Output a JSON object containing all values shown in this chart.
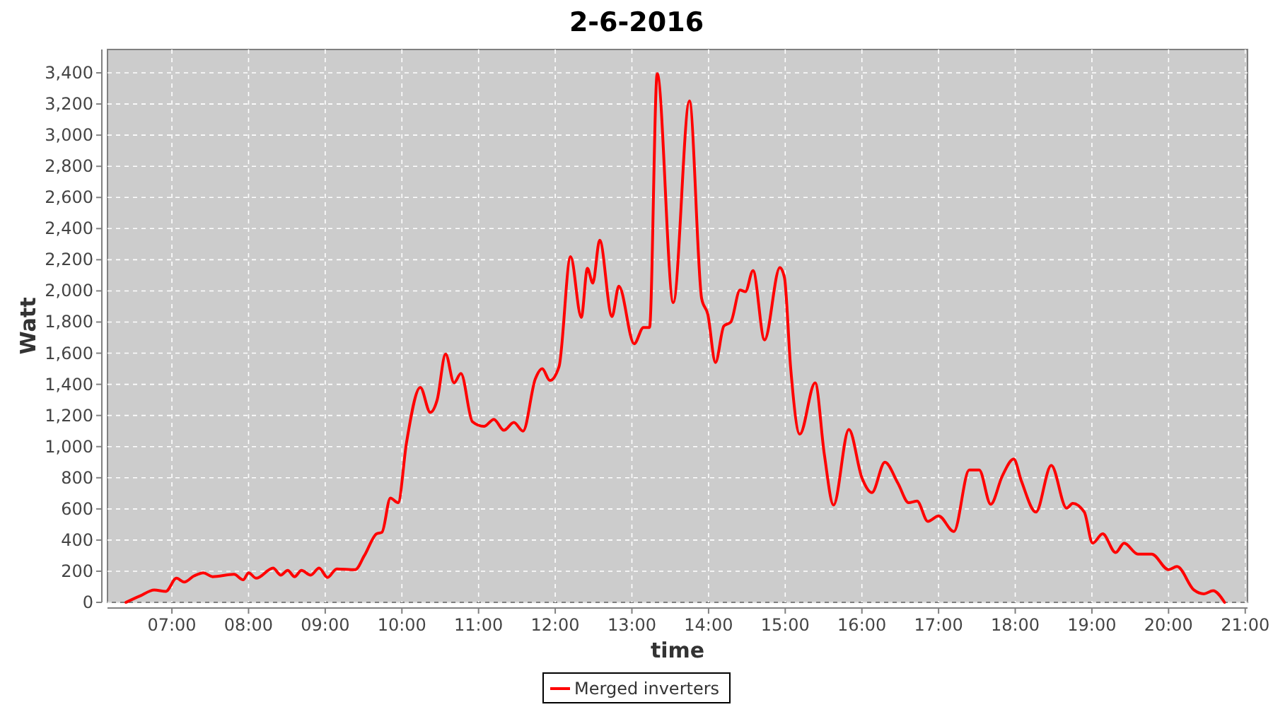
{
  "chart_data": {
    "type": "line",
    "title": "2-6-2016",
    "xlabel": "time",
    "ylabel": "Watt",
    "grid": true,
    "legend": "bottom",
    "line_style": "solid",
    "marker": "none",
    "xlim": [
      6.16,
      21.03
    ],
    "xticks": [
      {
        "value": 7,
        "label": "07:00"
      },
      {
        "value": 8,
        "label": "08:00"
      },
      {
        "value": 9,
        "label": "09:00"
      },
      {
        "value": 10,
        "label": "10:00"
      },
      {
        "value": 11,
        "label": "11:00"
      },
      {
        "value": 12,
        "label": "12:00"
      },
      {
        "value": 13,
        "label": "13:00"
      },
      {
        "value": 14,
        "label": "14:00"
      },
      {
        "value": 15,
        "label": "15:00"
      },
      {
        "value": 16,
        "label": "16:00"
      },
      {
        "value": 17,
        "label": "17:00"
      },
      {
        "value": 18,
        "label": "18:00"
      },
      {
        "value": 19,
        "label": "19:00"
      },
      {
        "value": 20,
        "label": "20:00"
      },
      {
        "value": 21,
        "label": "21:00"
      }
    ],
    "ylim": [
      0,
      3550
    ],
    "yticks": [
      0,
      200,
      400,
      600,
      800,
      {
        "value": 1000,
        "label": "1,000"
      },
      {
        "value": 1200,
        "label": "1,200"
      },
      {
        "value": 1400,
        "label": "1,400"
      },
      {
        "value": 1600,
        "label": "1,600"
      },
      {
        "value": 1800,
        "label": "1,800"
      },
      {
        "value": 2000,
        "label": "2,000"
      },
      {
        "value": 2200,
        "label": "2,200"
      },
      {
        "value": 2400,
        "label": "2,400"
      },
      {
        "value": 2600,
        "label": "2,600"
      },
      {
        "value": 2800,
        "label": "2,800"
      },
      {
        "value": 3000,
        "label": "3,000"
      },
      {
        "value": 3200,
        "label": "3,200"
      },
      {
        "value": 3400,
        "label": "3,400"
      }
    ],
    "x": [
      6.4,
      6.58,
      6.77,
      6.92,
      7.06,
      7.16,
      7.29,
      7.41,
      7.53,
      7.81,
      7.93,
      8.0,
      8.1,
      8.32,
      8.42,
      8.51,
      8.6,
      8.69,
      8.81,
      8.92,
      9.03,
      9.15,
      9.39,
      9.51,
      9.67,
      9.74,
      9.85,
      9.95,
      10.06,
      10.24,
      10.37,
      10.46,
      10.57,
      10.68,
      10.77,
      10.92,
      11.07,
      11.2,
      11.33,
      11.46,
      11.58,
      11.74,
      11.83,
      11.93,
      12.05,
      12.2,
      12.34,
      12.42,
      12.49,
      12.58,
      12.74,
      12.83,
      13.03,
      13.15,
      13.23,
      13.33,
      13.54,
      13.75,
      13.91,
      13.99,
      14.09,
      14.2,
      14.29,
      14.41,
      14.48,
      14.58,
      14.73,
      14.93,
      14.99,
      15.07,
      15.19,
      15.39,
      15.51,
      15.63,
      15.83,
      16.0,
      16.13,
      16.3,
      16.47,
      16.61,
      16.72,
      16.86,
      17.0,
      17.2,
      17.4,
      17.53,
      17.68,
      17.83,
      17.98,
      18.08,
      18.27,
      18.47,
      18.67,
      18.75,
      18.9,
      19.01,
      19.14,
      19.31,
      19.42,
      19.6,
      19.78,
      20.0,
      20.11,
      20.33,
      20.46,
      20.58,
      20.73
    ],
    "series": [
      {
        "name": "Merged inverters",
        "color": "#ff0000",
        "values": [
          0,
          40,
          80,
          70,
          155,
          130,
          170,
          190,
          165,
          180,
          145,
          190,
          155,
          220,
          175,
          205,
          165,
          205,
          175,
          220,
          160,
          215,
          210,
          300,
          440,
          450,
          670,
          640,
          1025,
          1380,
          1220,
          1300,
          1595,
          1410,
          1470,
          1160,
          1130,
          1175,
          1105,
          1155,
          1100,
          1435,
          1500,
          1425,
          1515,
          2220,
          1830,
          2145,
          2050,
          2325,
          1835,
          2030,
          1660,
          1765,
          1765,
          3395,
          1925,
          3220,
          1950,
          1850,
          1540,
          1775,
          1800,
          2005,
          1995,
          2130,
          1685,
          2150,
          2085,
          1510,
          1080,
          1410,
          950,
          625,
          1110,
          800,
          705,
          900,
          765,
          640,
          650,
          520,
          555,
          455,
          850,
          850,
          630,
          810,
          920,
          780,
          580,
          880,
          605,
          635,
          580,
          380,
          440,
          320,
          380,
          310,
          310,
          210,
          230,
          80,
          55,
          75,
          0
        ]
      }
    ]
  }
}
